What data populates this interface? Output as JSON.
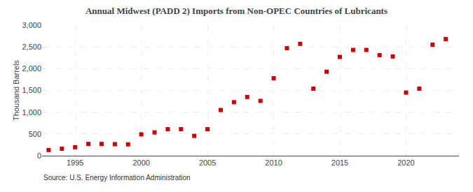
{
  "chart_data": {
    "type": "scatter",
    "title": "Annual Midwest (PADD 2) Imports from Non-OPEC Countries of Lubricants",
    "ylabel": "Thousand Barrels",
    "source": "Source: U.S. Energy Information Administration",
    "x": [
      1993,
      1994,
      1995,
      1996,
      1997,
      1998,
      1999,
      2000,
      2001,
      2002,
      2003,
      2004,
      2005,
      2006,
      2007,
      2008,
      2009,
      2010,
      2011,
      2012,
      2013,
      2014,
      2015,
      2016,
      2017,
      2018,
      2019,
      2020,
      2021,
      2022,
      2023
    ],
    "values": [
      130,
      160,
      195,
      270,
      270,
      265,
      260,
      490,
      535,
      610,
      610,
      455,
      610,
      1050,
      1230,
      1350,
      1260,
      1780,
      2470,
      2570,
      1540,
      1930,
      2270,
      2430,
      2430,
      2310,
      2280,
      1450,
      1540,
      2550,
      2680
    ],
    "color": "#cc0000",
    "marker": "square",
    "xlim": [
      1992.5,
      2024
    ],
    "xticks": [
      1995,
      2000,
      2005,
      2010,
      2015,
      2020
    ],
    "ylim": [
      0,
      3000
    ],
    "yticks": [
      0,
      500,
      {
        "value": 1000,
        "label": "1,000"
      },
      {
        "value": 1500,
        "label": "1,500"
      },
      {
        "value": 2000,
        "label": "2,000"
      },
      {
        "value": 2500,
        "label": "2,500"
      },
      {
        "value": 3000,
        "label": "3,000"
      }
    ],
    "grid": true
  }
}
